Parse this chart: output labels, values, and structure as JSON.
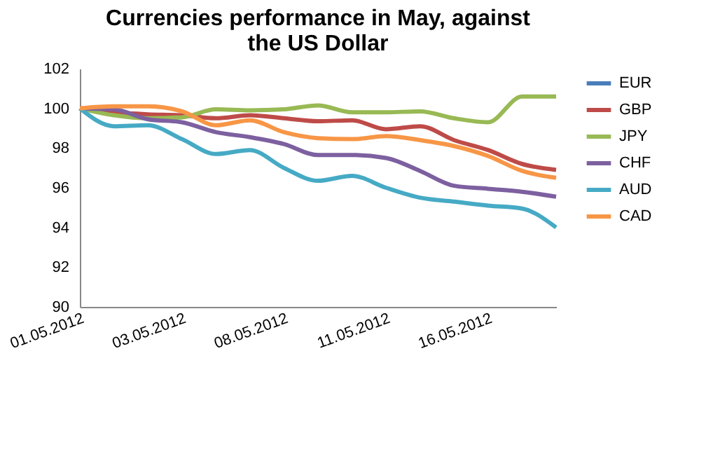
{
  "chart_data": {
    "type": "line",
    "title": "Currencies performance in May, against the US Dollar",
    "categories": [
      "01.05.2012",
      null,
      null,
      "03.05.2012",
      null,
      null,
      "08.05.2012",
      null,
      null,
      "11.05.2012",
      null,
      null,
      "16.05.2012",
      null,
      null
    ],
    "series": [
      {
        "name": "EUR",
        "color": "#4a7ebb",
        "values": [
          null,
          null,
          null,
          null,
          null,
          null,
          null,
          null,
          null,
          null,
          null,
          null,
          null,
          null,
          null
        ]
      },
      {
        "name": "GBP",
        "color": "#be4b48",
        "values": [
          100,
          99.8,
          99.7,
          99.65,
          99.5,
          99.65,
          99.5,
          99.35,
          99.4,
          98.95,
          99.1,
          98.4,
          97.9,
          97.2,
          96.9
        ]
      },
      {
        "name": "JPY",
        "color": "#98b954",
        "values": [
          100,
          99.65,
          99.5,
          99.55,
          99.95,
          99.9,
          99.95,
          100.15,
          99.8,
          99.8,
          99.85,
          99.5,
          99.3,
          100.6,
          100.6
        ]
      },
      {
        "name": "CHF",
        "color": "#7d60a0",
        "values": [
          100,
          99.95,
          99.45,
          99.3,
          98.8,
          98.55,
          98.2,
          97.65,
          97.65,
          97.5,
          96.85,
          96.1,
          95.95,
          95.8,
          95.55
        ]
      },
      {
        "name": "AUD",
        "color": "#46aac5",
        "values": [
          100,
          99.1,
          99.15,
          98.45,
          97.7,
          97.9,
          97.0,
          96.35,
          96.6,
          96.0,
          95.5,
          95.3,
          95.1,
          94.95,
          94.0
        ]
      },
      {
        "name": "CAD",
        "color": "#f79646",
        "values": [
          100,
          100.1,
          100.1,
          99.85,
          99.15,
          99.4,
          98.8,
          98.5,
          98.45,
          98.6,
          98.4,
          98.1,
          97.6,
          96.85,
          96.5
        ]
      }
    ],
    "ylim": [
      90,
      102
    ],
    "yticks": [
      90,
      92,
      94,
      96,
      98,
      100,
      102
    ],
    "grid": false,
    "legend": "right",
    "marker": "none",
    "line_style": "solid"
  }
}
